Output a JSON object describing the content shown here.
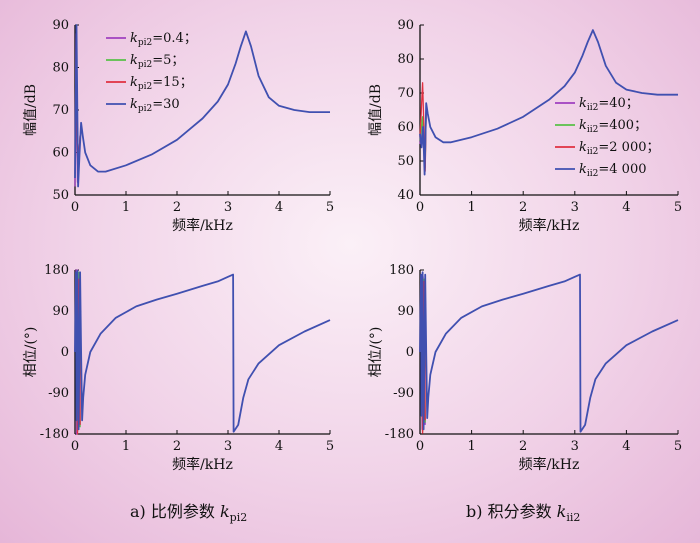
{
  "captions": {
    "a_prefix": "a) 比例参数 ",
    "a_symbol": "k",
    "a_sub": "pi2",
    "b_prefix": "b) 积分参数 ",
    "b_symbol": "k",
    "b_sub": "ii2"
  },
  "colors": {
    "series": [
      "#a040c0",
      "#58c048",
      "#e03040",
      "#4050b0"
    ],
    "axis": "#111111",
    "background": "#f1d3e8"
  },
  "chart_data": [
    {
      "id": "a-mag",
      "type": "line",
      "xlabel": "频率/kHz",
      "ylabel": "幅值/dB",
      "xlim": [
        0,
        5
      ],
      "ylim": [
        50,
        90
      ],
      "xticks": [
        "0",
        "1",
        "2",
        "3",
        "4",
        "5"
      ],
      "yticks": [
        "50",
        "60",
        "70",
        "80",
        "90"
      ],
      "grid": false,
      "legend_position": "top-left",
      "series": [
        {
          "label_k": "k",
          "label_sub": "pi2",
          "label_val": "=0.4；",
          "x": [
            0,
            0.02,
            0.05,
            0.1
          ],
          "y": [
            52,
            88,
            53,
            64
          ]
        },
        {
          "label_k": "k",
          "label_sub": "pi2",
          "label_val": "=5；",
          "x": [
            0,
            0.03,
            0.06,
            0.1
          ],
          "y": [
            54,
            80,
            56,
            64
          ]
        },
        {
          "label_k": "k",
          "label_sub": "pi2",
          "label_val": "=15；",
          "x": [
            0,
            0.03,
            0.07,
            0.1
          ],
          "y": [
            55,
            70,
            58,
            64
          ]
        },
        {
          "label_k": "k",
          "label_sub": "pi2",
          "label_val": "=30",
          "x": [
            0,
            0.03,
            0.06,
            0.09,
            0.12,
            0.15,
            0.2,
            0.3,
            0.45,
            0.6,
            1.0,
            1.5,
            2.0,
            2.5,
            2.8,
            3.0,
            3.15,
            3.25,
            3.35,
            3.45,
            3.6,
            3.8,
            4.0,
            4.3,
            4.6,
            4.8,
            5.0
          ],
          "y": [
            54,
            90,
            52,
            60,
            67,
            64,
            60,
            57,
            55.5,
            55.5,
            57,
            59.5,
            63,
            68,
            72,
            76,
            81,
            85,
            88.5,
            85,
            78,
            73,
            71,
            70,
            69.5,
            69.5,
            69.5
          ]
        }
      ]
    },
    {
      "id": "b-mag",
      "type": "line",
      "xlabel": "频率/kHz",
      "ylabel": "幅值/dB",
      "xlim": [
        0,
        5
      ],
      "ylim": [
        40,
        90
      ],
      "xticks": [
        "0",
        "1",
        "2",
        "3",
        "4",
        "5"
      ],
      "yticks": [
        "40",
        "50",
        "60",
        "70",
        "80",
        "90"
      ],
      "grid": false,
      "legend_position": "center-right",
      "series": [
        {
          "label_k": "k",
          "label_sub": "ii2",
          "label_val": "=40；",
          "x": [
            0,
            0.05,
            0.1,
            0.12
          ],
          "y": [
            55,
            62,
            50,
            66
          ]
        },
        {
          "label_k": "k",
          "label_sub": "ii2",
          "label_val": "=400；",
          "x": [
            0,
            0.05,
            0.1,
            0.12
          ],
          "y": [
            56,
            63,
            48,
            66
          ]
        },
        {
          "label_k": "k",
          "label_sub": "ii2",
          "label_val": "=2 000；",
          "x": [
            0,
            0.05,
            0.1,
            0.12
          ],
          "y": [
            57,
            73,
            47,
            66
          ]
        },
        {
          "label_k": "k",
          "label_sub": "ii2",
          "label_val": "=4 000",
          "x": [
            0,
            0.03,
            0.06,
            0.09,
            0.12,
            0.15,
            0.2,
            0.3,
            0.45,
            0.6,
            1.0,
            1.5,
            2.0,
            2.5,
            2.8,
            3.0,
            3.15,
            3.25,
            3.35,
            3.45,
            3.6,
            3.8,
            4.0,
            4.3,
            4.6,
            4.8,
            5.0
          ],
          "y": [
            58,
            54,
            60,
            46,
            67,
            64,
            60,
            57,
            55.5,
            55.5,
            57,
            59.5,
            63,
            68,
            72,
            76,
            81,
            85,
            88.5,
            85,
            78,
            73,
            71,
            70,
            69.5,
            69.5,
            69.5
          ]
        }
      ]
    },
    {
      "id": "a-phase",
      "type": "line",
      "xlabel": "频率/kHz",
      "ylabel": "相位/(°)",
      "xlim": [
        0,
        5
      ],
      "ylim": [
        -180,
        180
      ],
      "xticks": [
        "0",
        "1",
        "2",
        "3",
        "4",
        "5"
      ],
      "yticks": [
        "-180",
        "-90",
        "0",
        "90",
        "180"
      ],
      "grid": false,
      "series": [
        {
          "name": "",
          "x": [
            0,
            0.02,
            0.03,
            0.05,
            0.07,
            0.09,
            0.1
          ],
          "y": [
            0,
            180,
            -180,
            180,
            -170,
            170,
            -160
          ]
        },
        {
          "name": "",
          "x": [
            0,
            0.03,
            0.05,
            0.08,
            0.1
          ],
          "y": [
            0,
            170,
            -175,
            175,
            -165
          ]
        },
        {
          "name": "",
          "x": [
            0,
            0.03,
            0.05,
            0.08,
            0.1
          ],
          "y": [
            0,
            165,
            -180,
            160,
            -160
          ]
        },
        {
          "name": "",
          "x": [
            0,
            0.02,
            0.03,
            0.05,
            0.07,
            0.1,
            0.12,
            0.14,
            0.16,
            0.2,
            0.3,
            0.5,
            0.8,
            1.2,
            1.6,
            2.0,
            2.5,
            2.8,
            3.0,
            3.1,
            3.11,
            3.2,
            3.3,
            3.4,
            3.6,
            4.0,
            4.5,
            5.0
          ],
          "y": [
            0,
            175,
            -150,
            178,
            -170,
            175,
            0,
            -150,
            -100,
            -50,
            0,
            40,
            75,
            100,
            115,
            128,
            145,
            155,
            165,
            170,
            -175,
            -160,
            -100,
            -60,
            -25,
            15,
            45,
            70
          ]
        }
      ]
    },
    {
      "id": "b-phase",
      "type": "line",
      "xlabel": "频率/kHz",
      "ylabel": "相位/(°)",
      "xlim": [
        0,
        5
      ],
      "ylim": [
        -180,
        180
      ],
      "xticks": [
        "0",
        "1",
        "2",
        "3",
        "4",
        "5"
      ],
      "yticks": [
        "-180",
        "-90",
        "0",
        "90",
        "180"
      ],
      "grid": false,
      "series": [
        {
          "name": "",
          "x": [
            0,
            0.02,
            0.04,
            0.06,
            0.1
          ],
          "y": [
            0,
            170,
            -170,
            165,
            -160
          ]
        },
        {
          "name": "",
          "x": [
            0,
            0.03,
            0.05,
            0.08,
            0.1
          ],
          "y": [
            0,
            165,
            -175,
            160,
            -155
          ]
        },
        {
          "name": "",
          "x": [
            0,
            0.03,
            0.05,
            0.08,
            0.1
          ],
          "y": [
            0,
            160,
            -178,
            155,
            -150
          ]
        },
        {
          "name": "",
          "x": [
            0,
            0.02,
            0.03,
            0.05,
            0.07,
            0.1,
            0.12,
            0.14,
            0.16,
            0.2,
            0.3,
            0.5,
            0.8,
            1.2,
            1.6,
            2.0,
            2.5,
            2.8,
            3.0,
            3.1,
            3.11,
            3.2,
            3.3,
            3.4,
            3.6,
            4.0,
            4.5,
            5.0
          ],
          "y": [
            0,
            170,
            -140,
            175,
            -170,
            170,
            0,
            -145,
            -100,
            -50,
            0,
            40,
            75,
            100,
            115,
            128,
            145,
            155,
            165,
            170,
            -175,
            -160,
            -100,
            -60,
            -25,
            15,
            45,
            70
          ]
        }
      ]
    }
  ]
}
